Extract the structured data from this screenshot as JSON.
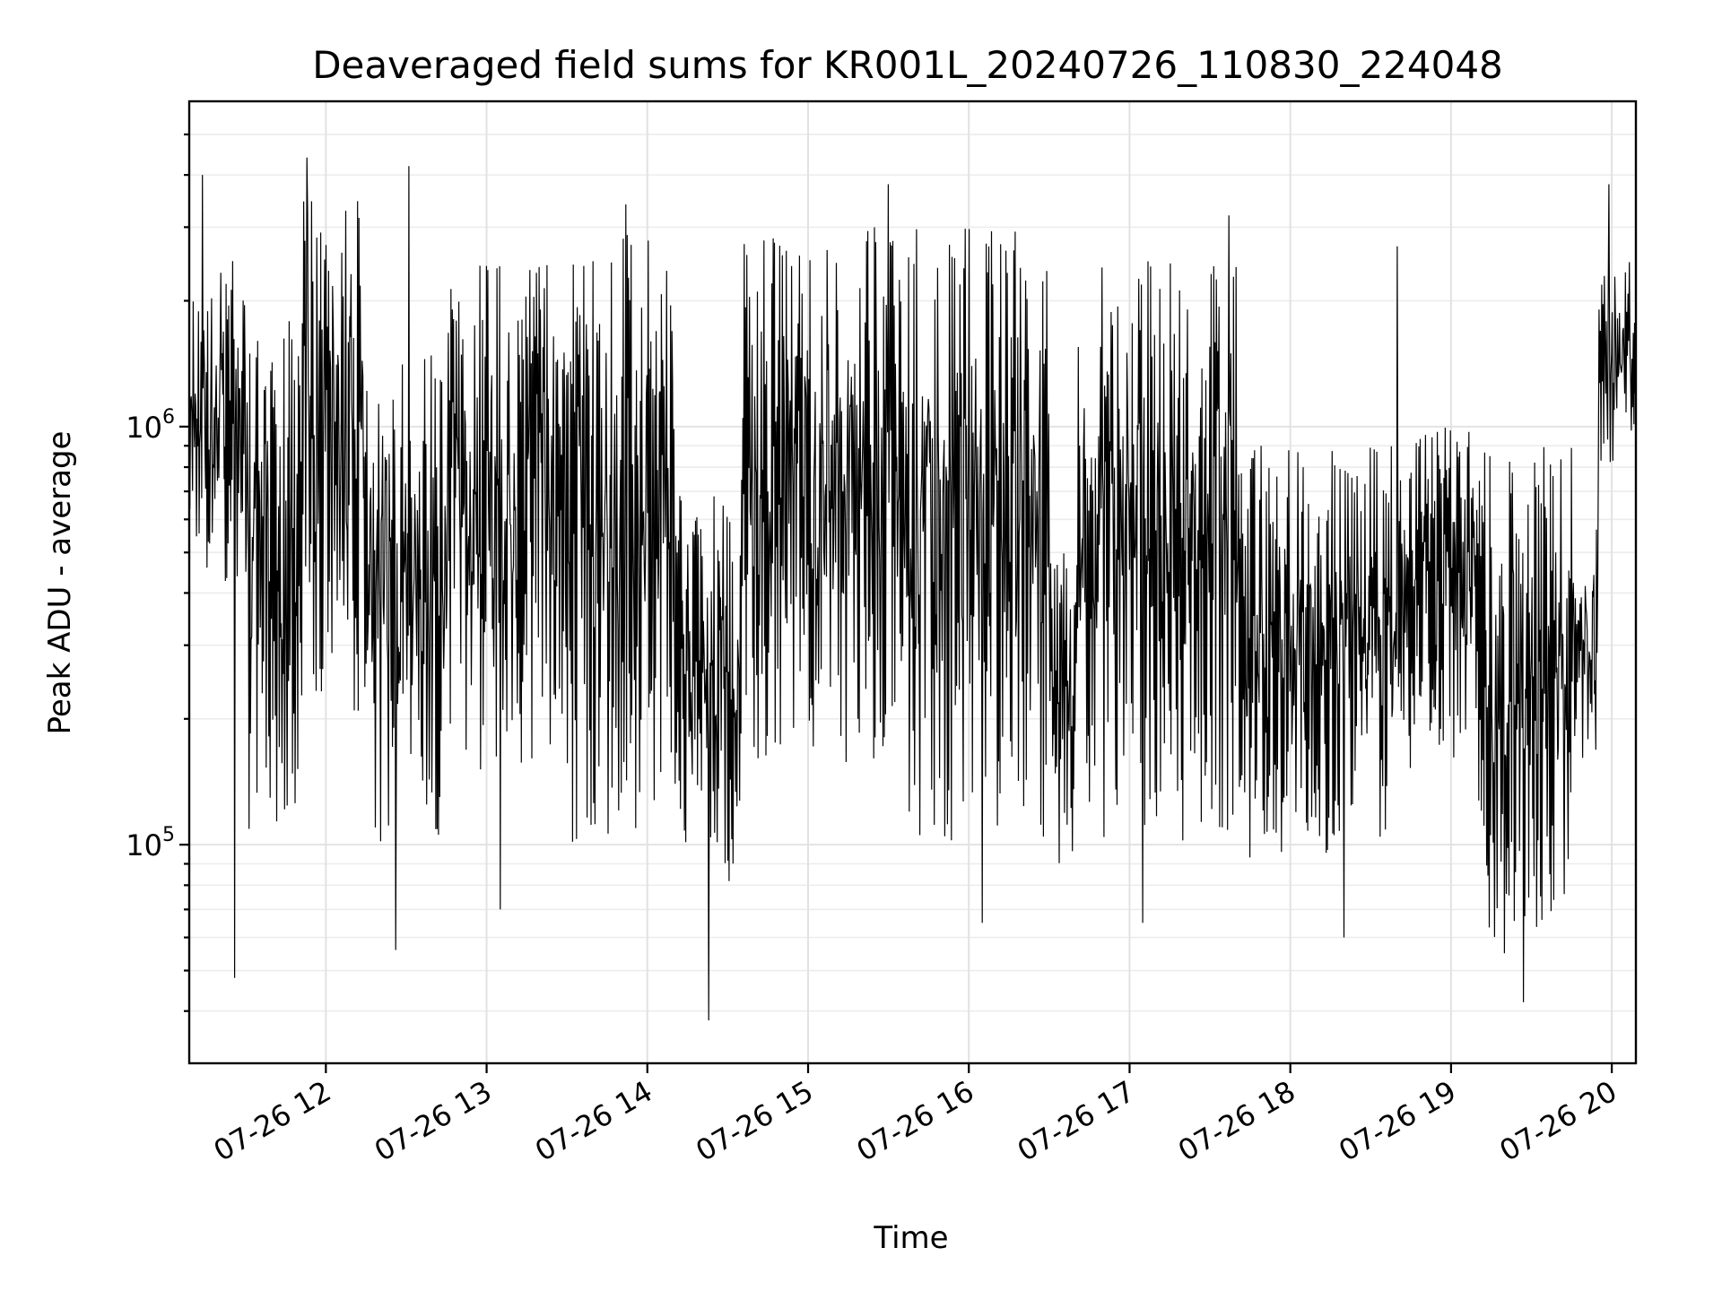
{
  "chart_data": {
    "type": "line",
    "title": "Deaveraged field sums for KR001L_20240726_110830_224048",
    "xlabel": "Time",
    "ylabel": "Peak ADU - average",
    "xlim": [
      "07-26 11:09",
      "07-26 20:09"
    ],
    "ylim": [
      30000,
      6000000
    ],
    "yscale": "log",
    "grid": true,
    "x_ticks": [
      "07-26 12",
      "07-26 13",
      "07-26 14",
      "07-26 15",
      "07-26 16",
      "07-26 17",
      "07-26 18",
      "07-26 19",
      "07-26 20"
    ],
    "y_ticks": [
      {
        "value": 100000,
        "base": "10",
        "exp": "5"
      },
      {
        "value": 1000000,
        "base": "10",
        "exp": "6"
      }
    ],
    "series": [
      {
        "color": "#000000",
        "segments": [
          {
            "start": "07-26 11:09",
            "end": "07-26 11:30",
            "low": 400000,
            "high": 2500000
          },
          {
            "start": "07-26 11:30",
            "end": "07-26 11:50",
            "low": 100000,
            "high": 2000000
          },
          {
            "start": "07-26 11:50",
            "end": "07-26 12:15",
            "low": 200000,
            "high": 3500000
          },
          {
            "start": "07-26 12:15",
            "end": "07-26 12:45",
            "low": 100000,
            "high": 1500000
          },
          {
            "start": "07-26 12:45",
            "end": "07-26 13:30",
            "low": 150000,
            "high": 2500000
          },
          {
            "start": "07-26 13:30",
            "end": "07-26 14:10",
            "low": 100000,
            "high": 3000000
          },
          {
            "start": "07-26 14:10",
            "end": "07-26 14:35",
            "low": 80000,
            "high": 700000
          },
          {
            "start": "07-26 14:35",
            "end": "07-26 15:30",
            "low": 150000,
            "high": 3000000
          },
          {
            "start": "07-26 15:30",
            "end": "07-26 16:30",
            "low": 100000,
            "high": 3000000
          },
          {
            "start": "07-26 16:30",
            "end": "07-26 16:40",
            "low": 90000,
            "high": 600000
          },
          {
            "start": "07-26 16:40",
            "end": "07-26 17:40",
            "low": 100000,
            "high": 2500000
          },
          {
            "start": "07-26 17:40",
            "end": "07-26 18:40",
            "low": 90000,
            "high": 900000
          },
          {
            "start": "07-26 18:40",
            "end": "07-26 19:10",
            "low": 150000,
            "high": 1000000
          },
          {
            "start": "07-26 19:10",
            "end": "07-26 19:45",
            "low": 60000,
            "high": 900000
          },
          {
            "start": "07-26 19:45",
            "end": "07-26 19:55",
            "low": 150000,
            "high": 600000
          },
          {
            "start": "07-26 19:55",
            "end": "07-26 20:09",
            "low": 800000,
            "high": 2500000
          }
        ],
        "spikes": [
          {
            "t": "07-26 11:14",
            "y": 4000000
          },
          {
            "t": "07-26 11:26",
            "y": 48000
          },
          {
            "t": "07-26 11:53",
            "y": 4400000
          },
          {
            "t": "07-26 12:26",
            "y": 56000
          },
          {
            "t": "07-26 12:31",
            "y": 4200000
          },
          {
            "t": "07-26 13:05",
            "y": 70000
          },
          {
            "t": "07-26 13:52",
            "y": 3400000
          },
          {
            "t": "07-26 14:23",
            "y": 38000
          },
          {
            "t": "07-26 15:30",
            "y": 3800000
          },
          {
            "t": "07-26 16:05",
            "y": 65000
          },
          {
            "t": "07-26 17:05",
            "y": 65000
          },
          {
            "t": "07-26 17:37",
            "y": 3200000
          },
          {
            "t": "07-26 18:20",
            "y": 60000
          },
          {
            "t": "07-26 18:40",
            "y": 2700000
          },
          {
            "t": "07-26 19:20",
            "y": 55000
          },
          {
            "t": "07-26 19:27",
            "y": 42000
          },
          {
            "t": "07-26 19:59",
            "y": 3800000
          }
        ]
      }
    ]
  }
}
